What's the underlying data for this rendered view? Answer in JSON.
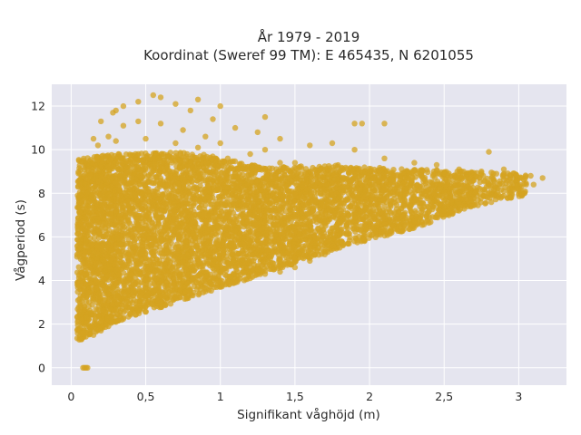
{
  "chart_data": {
    "type": "scatter",
    "title": "År 1979 - 2019",
    "subtitle": "Koordinat (Sweref 99 TM): E 465435, N 6201055",
    "xlabel": "Signifikant våghöjd (m)",
    "ylabel": "Vågperiod (s)",
    "xlim": [
      -0.13,
      3.32
    ],
    "ylim": [
      -0.8,
      13.0
    ],
    "x_ticks": [
      0,
      0.5,
      1,
      1.5,
      2,
      2.5,
      3
    ],
    "x_tick_labels": [
      "0",
      "0,5",
      "1",
      "1,5",
      "2",
      "2,5",
      "3"
    ],
    "y_ticks": [
      0,
      2,
      4,
      6,
      8,
      10,
      12
    ],
    "y_tick_labels": [
      "0",
      "2",
      "4",
      "6",
      "8",
      "10",
      "12"
    ],
    "grid": true,
    "legend": "none",
    "colors": {
      "marker": "#D4A320",
      "plot_background": "#E5E5EF",
      "grid": "#ffffff"
    },
    "series": [
      {
        "marker_opacity": 0.75,
        "points": [
          [
            0.08,
            1.4
          ],
          [
            0.07,
            1.3
          ],
          [
            0.1,
            1.6
          ],
          [
            0.12,
            1.9
          ],
          [
            0.1,
            2.3
          ],
          [
            0.09,
            2.8
          ],
          [
            0.08,
            3.3
          ],
          [
            0.1,
            3.8
          ],
          [
            0.09,
            4.3
          ],
          [
            0.08,
            4.8
          ],
          [
            0.09,
            5.3
          ],
          [
            0.1,
            5.8
          ],
          [
            0.09,
            6.3
          ],
          [
            0.1,
            6.8
          ],
          [
            0.11,
            7.3
          ],
          [
            0.1,
            7.8
          ],
          [
            0.12,
            8.3
          ],
          [
            0.13,
            8.8
          ],
          [
            0.12,
            9.3
          ],
          [
            0.08,
            0.0
          ],
          [
            0.1,
            0.0
          ],
          [
            0.11,
            0.0
          ],
          [
            0.09,
            0.0
          ],
          [
            0.15,
            1.5
          ],
          [
            0.2,
            1.7
          ],
          [
            0.25,
            1.9
          ],
          [
            0.3,
            2.1
          ],
          [
            0.35,
            2.3
          ],
          [
            0.4,
            2.5
          ],
          [
            0.45,
            2.6
          ],
          [
            0.5,
            2.8
          ],
          [
            0.55,
            2.9
          ],
          [
            0.6,
            3.0
          ],
          [
            0.65,
            3.1
          ],
          [
            0.7,
            3.2
          ],
          [
            0.8,
            3.4
          ],
          [
            0.9,
            3.5
          ],
          [
            1.0,
            3.7
          ],
          [
            1.1,
            3.9
          ],
          [
            1.2,
            4.1
          ],
          [
            1.3,
            4.3
          ],
          [
            1.4,
            4.4
          ],
          [
            1.5,
            4.6
          ],
          [
            1.6,
            4.9
          ],
          [
            1.7,
            5.2
          ],
          [
            1.8,
            5.5
          ],
          [
            1.9,
            5.8
          ],
          [
            2.0,
            6.1
          ],
          [
            2.1,
            6.3
          ],
          [
            2.2,
            6.5
          ],
          [
            2.3,
            6.7
          ],
          [
            2.4,
            6.9
          ],
          [
            2.5,
            7.2
          ],
          [
            2.6,
            7.5
          ],
          [
            2.7,
            7.8
          ],
          [
            2.8,
            8.0
          ],
          [
            2.9,
            8.1
          ],
          [
            3.0,
            8.2
          ],
          [
            3.1,
            8.4
          ],
          [
            3.16,
            8.7
          ],
          [
            3.08,
            8.8
          ],
          [
            2.9,
            8.9
          ],
          [
            2.75,
            9.0
          ],
          [
            2.6,
            9.1
          ],
          [
            2.45,
            9.3
          ],
          [
            2.3,
            9.4
          ],
          [
            2.1,
            9.6
          ],
          [
            1.9,
            10.0
          ],
          [
            1.75,
            10.3
          ],
          [
            1.6,
            10.2
          ],
          [
            1.4,
            10.5
          ],
          [
            1.25,
            10.8
          ],
          [
            1.1,
            11.0
          ],
          [
            0.95,
            11.4
          ],
          [
            0.8,
            11.8
          ],
          [
            0.7,
            12.1
          ],
          [
            0.6,
            12.4
          ],
          [
            0.55,
            12.5
          ],
          [
            0.45,
            12.2
          ],
          [
            0.3,
            11.8
          ],
          [
            0.2,
            11.3
          ],
          [
            0.15,
            10.5
          ],
          [
            2.8,
            9.9
          ],
          [
            2.9,
            9.1
          ],
          [
            2.95,
            7.8
          ],
          [
            3.05,
            8.4
          ],
          [
            2.7,
            8.6
          ],
          [
            2.55,
            7.6
          ],
          [
            2.4,
            7.2
          ],
          [
            2.2,
            7.1
          ],
          [
            2.0,
            6.9
          ],
          [
            1.8,
            7.6
          ],
          [
            1.6,
            8.2
          ],
          [
            1.4,
            9.4
          ],
          [
            1.9,
            11.2
          ],
          [
            1.95,
            11.2
          ],
          [
            2.1,
            11.2
          ],
          [
            1.3,
            11.5
          ],
          [
            1.0,
            12.0
          ],
          [
            0.85,
            12.3
          ],
          [
            0.35,
            12.0
          ],
          [
            0.28,
            11.7
          ],
          [
            1.05,
            6.5
          ],
          [
            1.2,
            7.0
          ],
          [
            1.35,
            7.5
          ],
          [
            1.5,
            8.0
          ],
          [
            1.65,
            8.5
          ],
          [
            1.8,
            9.0
          ],
          [
            1.45,
            6.2
          ],
          [
            1.7,
            6.6
          ],
          [
            1.9,
            7.0
          ],
          [
            2.05,
            7.5
          ],
          [
            2.25,
            8.0
          ],
          [
            2.35,
            7.3
          ],
          [
            1.55,
            5.2
          ],
          [
            1.45,
            5.5
          ],
          [
            1.6,
            5.8
          ],
          [
            1.35,
            4.8
          ],
          [
            1.25,
            4.5
          ],
          [
            1.15,
            4.4
          ],
          [
            1.4,
            4.9
          ],
          [
            1.65,
            5.4
          ],
          [
            1.75,
            5.9
          ],
          [
            1.85,
            6.2
          ],
          [
            1.5,
            9.4
          ],
          [
            1.3,
            10.0
          ],
          [
            1.2,
            9.8
          ],
          [
            1.0,
            10.3
          ],
          [
            0.9,
            10.6
          ],
          [
            0.75,
            10.9
          ],
          [
            0.6,
            11.2
          ],
          [
            0.45,
            11.3
          ],
          [
            0.35,
            11.1
          ],
          [
            0.25,
            10.6
          ],
          [
            0.18,
            10.2
          ],
          [
            0.3,
            10.4
          ],
          [
            0.5,
            10.5
          ],
          [
            0.7,
            10.3
          ],
          [
            0.85,
            10.1
          ],
          [
            1.05,
            9.6
          ],
          [
            1.25,
            9.2
          ],
          [
            1.1,
            8.9
          ],
          [
            0.95,
            9.0
          ],
          [
            0.8,
            9.4
          ],
          [
            0.65,
            9.7
          ],
          [
            0.45,
            9.8
          ],
          [
            0.3,
            9.6
          ],
          [
            0.2,
            9.2
          ]
        ],
        "bands": [
          {
            "x0": 0.04,
            "x1": 0.3,
            "ylo0": 1.2,
            "ylo1": 2.1,
            "yhi0": 9.6,
            "yhi1": 9.8,
            "count": 1200
          },
          {
            "x0": 0.3,
            "x1": 0.8,
            "ylo0": 2.1,
            "ylo1": 3.2,
            "yhi0": 9.8,
            "yhi1": 9.9,
            "count": 1600
          },
          {
            "x0": 0.8,
            "x1": 1.3,
            "ylo0": 3.2,
            "ylo1": 4.3,
            "yhi0": 9.9,
            "yhi1": 9.2,
            "count": 1300
          },
          {
            "x0": 1.3,
            "x1": 1.8,
            "ylo0": 4.3,
            "ylo1": 5.5,
            "yhi0": 9.2,
            "yhi1": 9.3,
            "count": 1000
          },
          {
            "x0": 1.8,
            "x1": 2.3,
            "ylo0": 5.5,
            "ylo1": 6.4,
            "yhi0": 9.3,
            "yhi1": 9.1,
            "count": 700
          },
          {
            "x0": 2.3,
            "x1": 2.7,
            "ylo0": 6.4,
            "ylo1": 7.4,
            "yhi0": 9.1,
            "yhi1": 9.0,
            "count": 380
          },
          {
            "x0": 2.7,
            "x1": 3.05,
            "ylo0": 7.4,
            "ylo1": 7.9,
            "yhi0": 9.0,
            "yhi1": 8.9,
            "count": 150
          }
        ]
      }
    ]
  }
}
